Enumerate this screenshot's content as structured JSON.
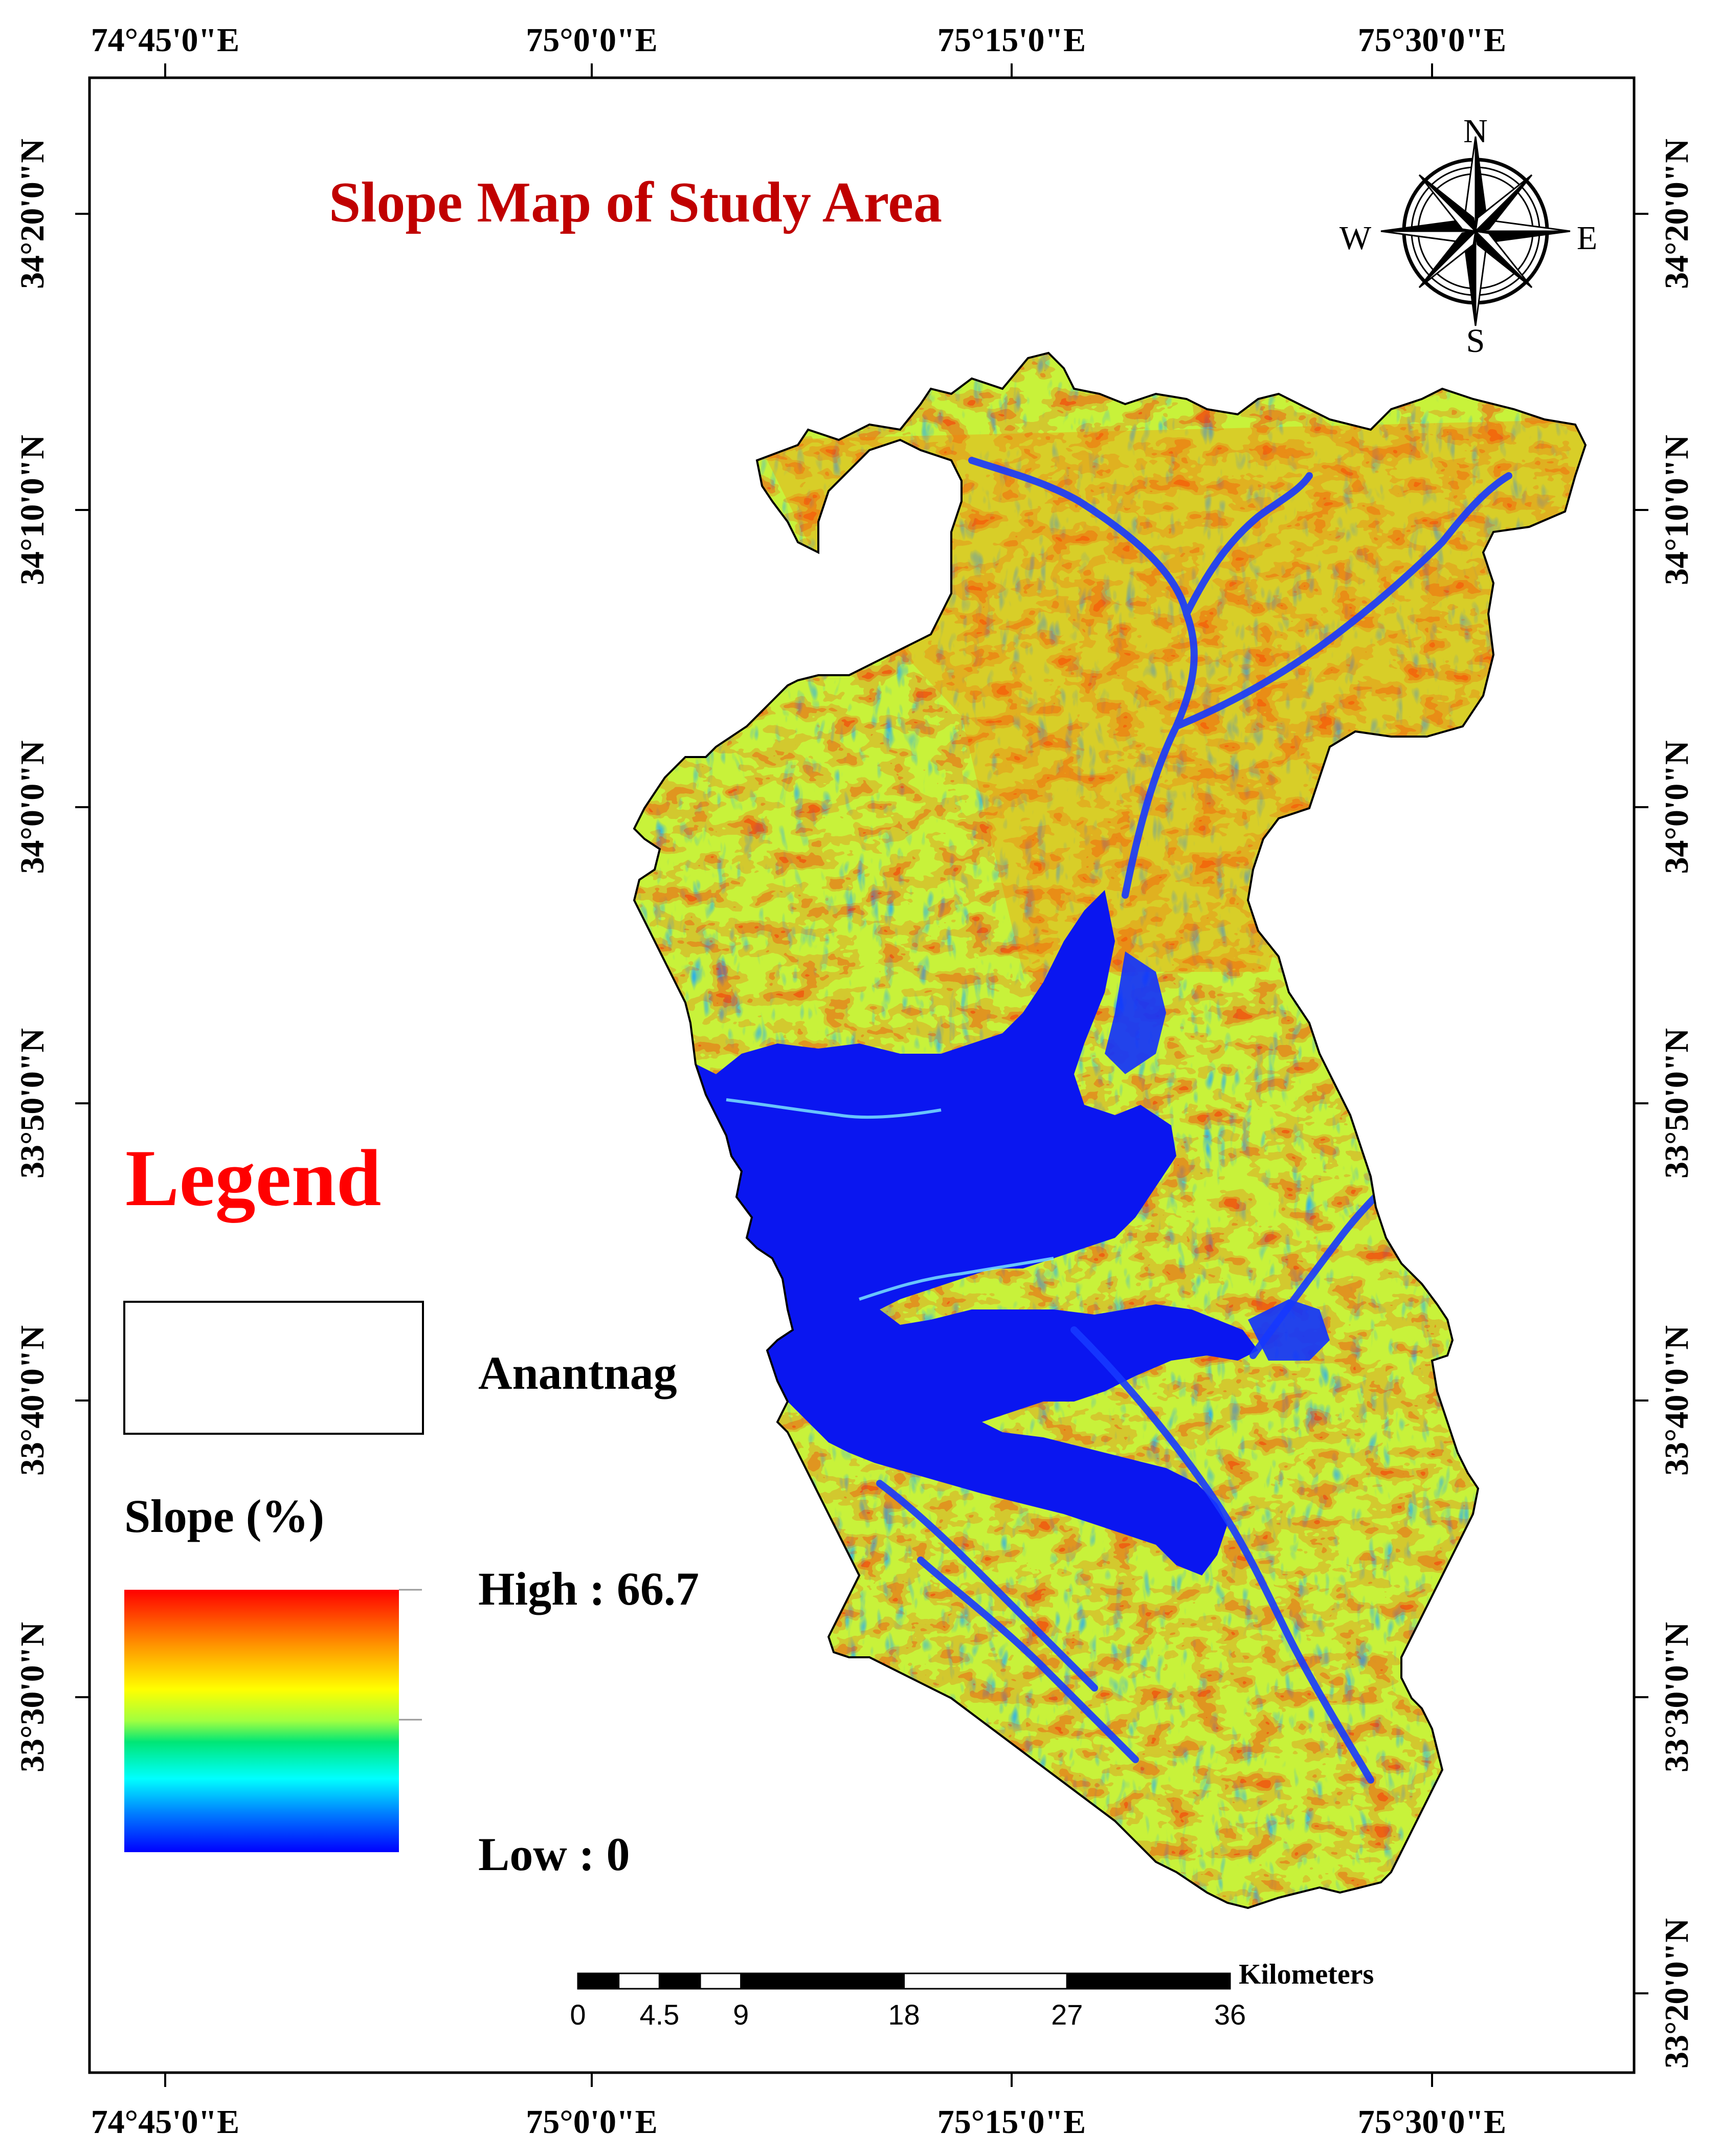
{
  "map": {
    "title": "Slope Map of Study Area",
    "colors": {
      "title": "#c00000",
      "legend_heading": "#ff0000",
      "high": "#ff0000",
      "mid_high": "#ffff00",
      "mid": "#00e676",
      "mid_low": "#00ffff",
      "low": "#0000ff"
    }
  },
  "graticule": {
    "top_labels": [
      "74°45'0\"E",
      "75°0'0\"E",
      "75°15'0\"E",
      "75°30'0\"E"
    ],
    "bottom_labels": [
      "74°45'0\"E",
      "75°0'0\"E",
      "75°15'0\"E",
      "75°30'0\"E"
    ],
    "left_labels": [
      "34°20'0\"N",
      "34°10'0\"N",
      "34°0'0\"N",
      "33°50'0\"N",
      "33°40'0\"N",
      "33°30'0\"N"
    ],
    "right_labels": [
      "34°20'0\"N",
      "34°10'0\"N",
      "34°0'0\"N",
      "33°50'0\"N",
      "33°40'0\"N",
      "33°30'0\"N",
      "33°20'0\"N"
    ]
  },
  "compass": {
    "north": "N",
    "south": "S",
    "east": "E",
    "west": "W",
    "icon": "compass-rose-icon"
  },
  "legend": {
    "heading": "Legend",
    "boundary_label": "Anantnag",
    "ramp_title": "Slope (%)",
    "high_label": "High : 66.7",
    "low_label": "Low : 0"
  },
  "scale_bar": {
    "unit": "Kilometers",
    "ticks": [
      "0",
      "4.5",
      "9",
      "18",
      "27",
      "36"
    ]
  }
}
